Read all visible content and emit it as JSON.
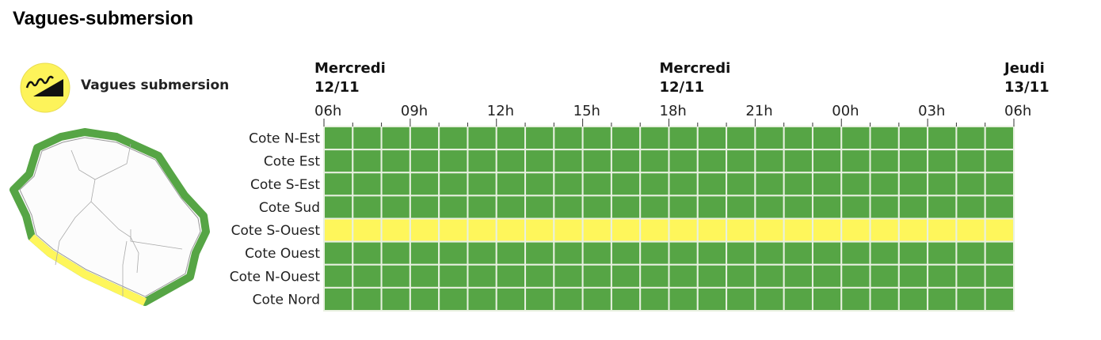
{
  "title": "Vagues-submersion",
  "legend": {
    "label": "Vagues submersion",
    "icon": "waves-submersion-icon",
    "icon_color": "#fdf35a"
  },
  "colors": {
    "green": "#56a545",
    "yellow": "#fef65b"
  },
  "chart_data": {
    "type": "heatmap",
    "title": "",
    "day_headers": [
      {
        "line1": "Mercredi",
        "line2": "12/11",
        "at_hour_index": 0
      },
      {
        "line1": "Mercredi",
        "line2": "12/11",
        "at_hour_index": 12
      },
      {
        "line1": "Jeudi",
        "line2": "13/11",
        "at_hour_index": 24
      }
    ],
    "x_ticks": [
      "06h",
      "09h",
      "12h",
      "15h",
      "18h",
      "21h",
      "00h",
      "03h",
      "06h"
    ],
    "hours": 24,
    "rows": [
      {
        "name": "Cote N-Est",
        "level": "green"
      },
      {
        "name": "Cote Est",
        "level": "green"
      },
      {
        "name": "Cote S-Est",
        "level": "green"
      },
      {
        "name": "Cote Sud",
        "level": "green"
      },
      {
        "name": "Cote S-Ouest",
        "level": "yellow"
      },
      {
        "name": "Cote Ouest",
        "level": "green"
      },
      {
        "name": "Cote N-Ouest",
        "level": "green"
      },
      {
        "name": "Cote Nord",
        "level": "green"
      }
    ]
  }
}
